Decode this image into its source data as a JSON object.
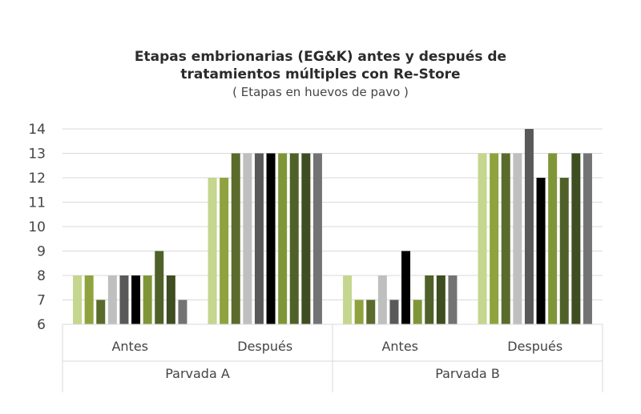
{
  "chart_data": {
    "type": "bar",
    "title": "Etapas embrionarias (EG&K) antes y después de",
    "title_line2": "tratamientos múltiples con Re-Store",
    "subtitle": "( Etapas en huevos de pavo )",
    "xlabel": "",
    "ylabel": "",
    "ylim": [
      6,
      14
    ],
    "yticks": [
      "6",
      "7",
      "8",
      "9",
      "10",
      "11",
      "12",
      "13",
      "14"
    ],
    "grid": true,
    "legend": "none",
    "groups": [
      {
        "label": "Parvada  A",
        "categories": [
          {
            "label": "Antes",
            "values": [
              8,
              8,
              7,
              8,
              8,
              8,
              8,
              9,
              8,
              7
            ]
          },
          {
            "label": "Después",
            "values": [
              12,
              12,
              13,
              13,
              13,
              13,
              13,
              13,
              13,
              13
            ]
          }
        ]
      },
      {
        "label": "Parvada  B",
        "categories": [
          {
            "label": "Antes",
            "values": [
              8,
              7,
              7,
              8,
              7,
              9,
              7,
              8,
              8,
              8
            ]
          },
          {
            "label": "Después",
            "values": [
              13,
              13,
              13,
              13,
              14,
              12,
              13,
              12,
              13,
              13
            ]
          }
        ]
      }
    ],
    "series_colors": [
      "#c5d68e",
      "#8ea33e",
      "#5a6b2c",
      "#bfbfbf",
      "#595959",
      "#000000",
      "#7f9638",
      "#4f6128",
      "#3f4d22",
      "#737373"
    ]
  }
}
